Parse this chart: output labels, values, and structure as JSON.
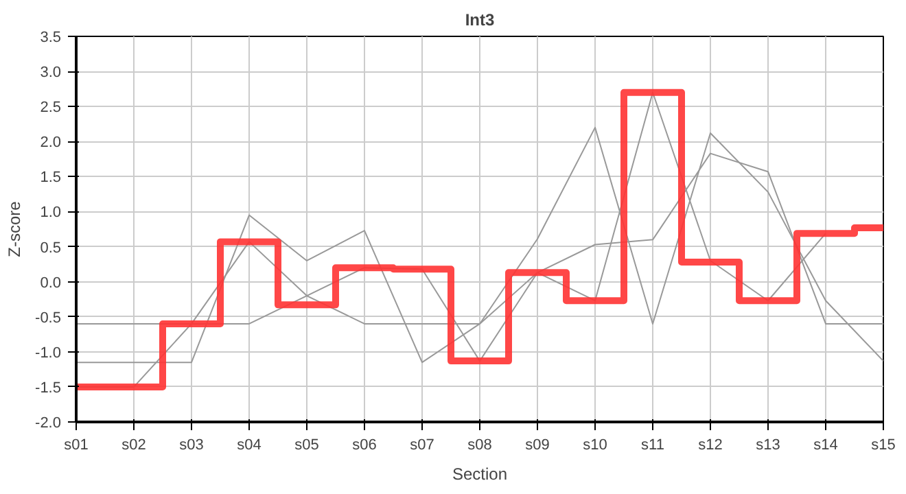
{
  "chart_data": {
    "type": "line",
    "title": "Int3",
    "xlabel": "Section",
    "ylabel": "Z-score",
    "categories": [
      "s01",
      "s02",
      "s03",
      "s04",
      "s05",
      "s06",
      "s07",
      "s08",
      "s09",
      "s10",
      "s11",
      "s12",
      "s13",
      "s14",
      "s15"
    ],
    "series": [
      {
        "color": "#999999",
        "values": [
          -0.6,
          -0.6,
          -0.6,
          -0.6,
          -0.2,
          -0.6,
          -0.6,
          -0.6,
          0.13,
          0.53,
          0.6,
          1.83,
          1.57,
          -0.6,
          -0.6
        ]
      },
      {
        "color": "#999999",
        "values": [
          -1.15,
          -1.15,
          -1.15,
          0.95,
          0.3,
          0.73,
          -1.15,
          -0.6,
          0.61,
          2.2,
          -0.6,
          2.12,
          1.28,
          -0.27,
          -1.13
        ]
      },
      {
        "color": "#999999",
        "values": [
          -1.5,
          -1.5,
          -0.6,
          0.57,
          -0.2,
          0.2,
          0.18,
          -1.13,
          0.13,
          -0.27,
          2.7,
          0.3,
          -0.27,
          0.69,
          null
        ]
      },
      {
        "type": "step",
        "color": "#ff3333",
        "values": [
          -1.5,
          -1.5,
          -0.6,
          0.57,
          -0.33,
          0.2,
          0.18,
          -1.13,
          0.13,
          -0.27,
          2.7,
          0.28,
          -0.27,
          0.69,
          0.77
        ]
      }
    ],
    "ylim": [
      -2.0,
      3.5
    ],
    "yticks": [
      {
        "value": -2,
        "label": "-2.0"
      },
      {
        "value": -1.5,
        "label": "-1.5"
      },
      {
        "value": -1,
        "label": "-1.0"
      },
      {
        "value": -0.5,
        "label": "-0.5"
      },
      {
        "value": 0,
        "label": "0.0"
      },
      {
        "value": 0.5,
        "label": "0.5"
      },
      {
        "value": 1,
        "label": "1.0"
      },
      {
        "value": 1.5,
        "label": "1.5"
      },
      {
        "value": 2,
        "label": "2.0"
      },
      {
        "value": 2.5,
        "label": "2.5"
      },
      {
        "value": 3,
        "label": "3.0"
      },
      {
        "value": 3.5,
        "label": "3.5"
      }
    ],
    "grid": true,
    "marker": "none",
    "line_style": "solid"
  }
}
